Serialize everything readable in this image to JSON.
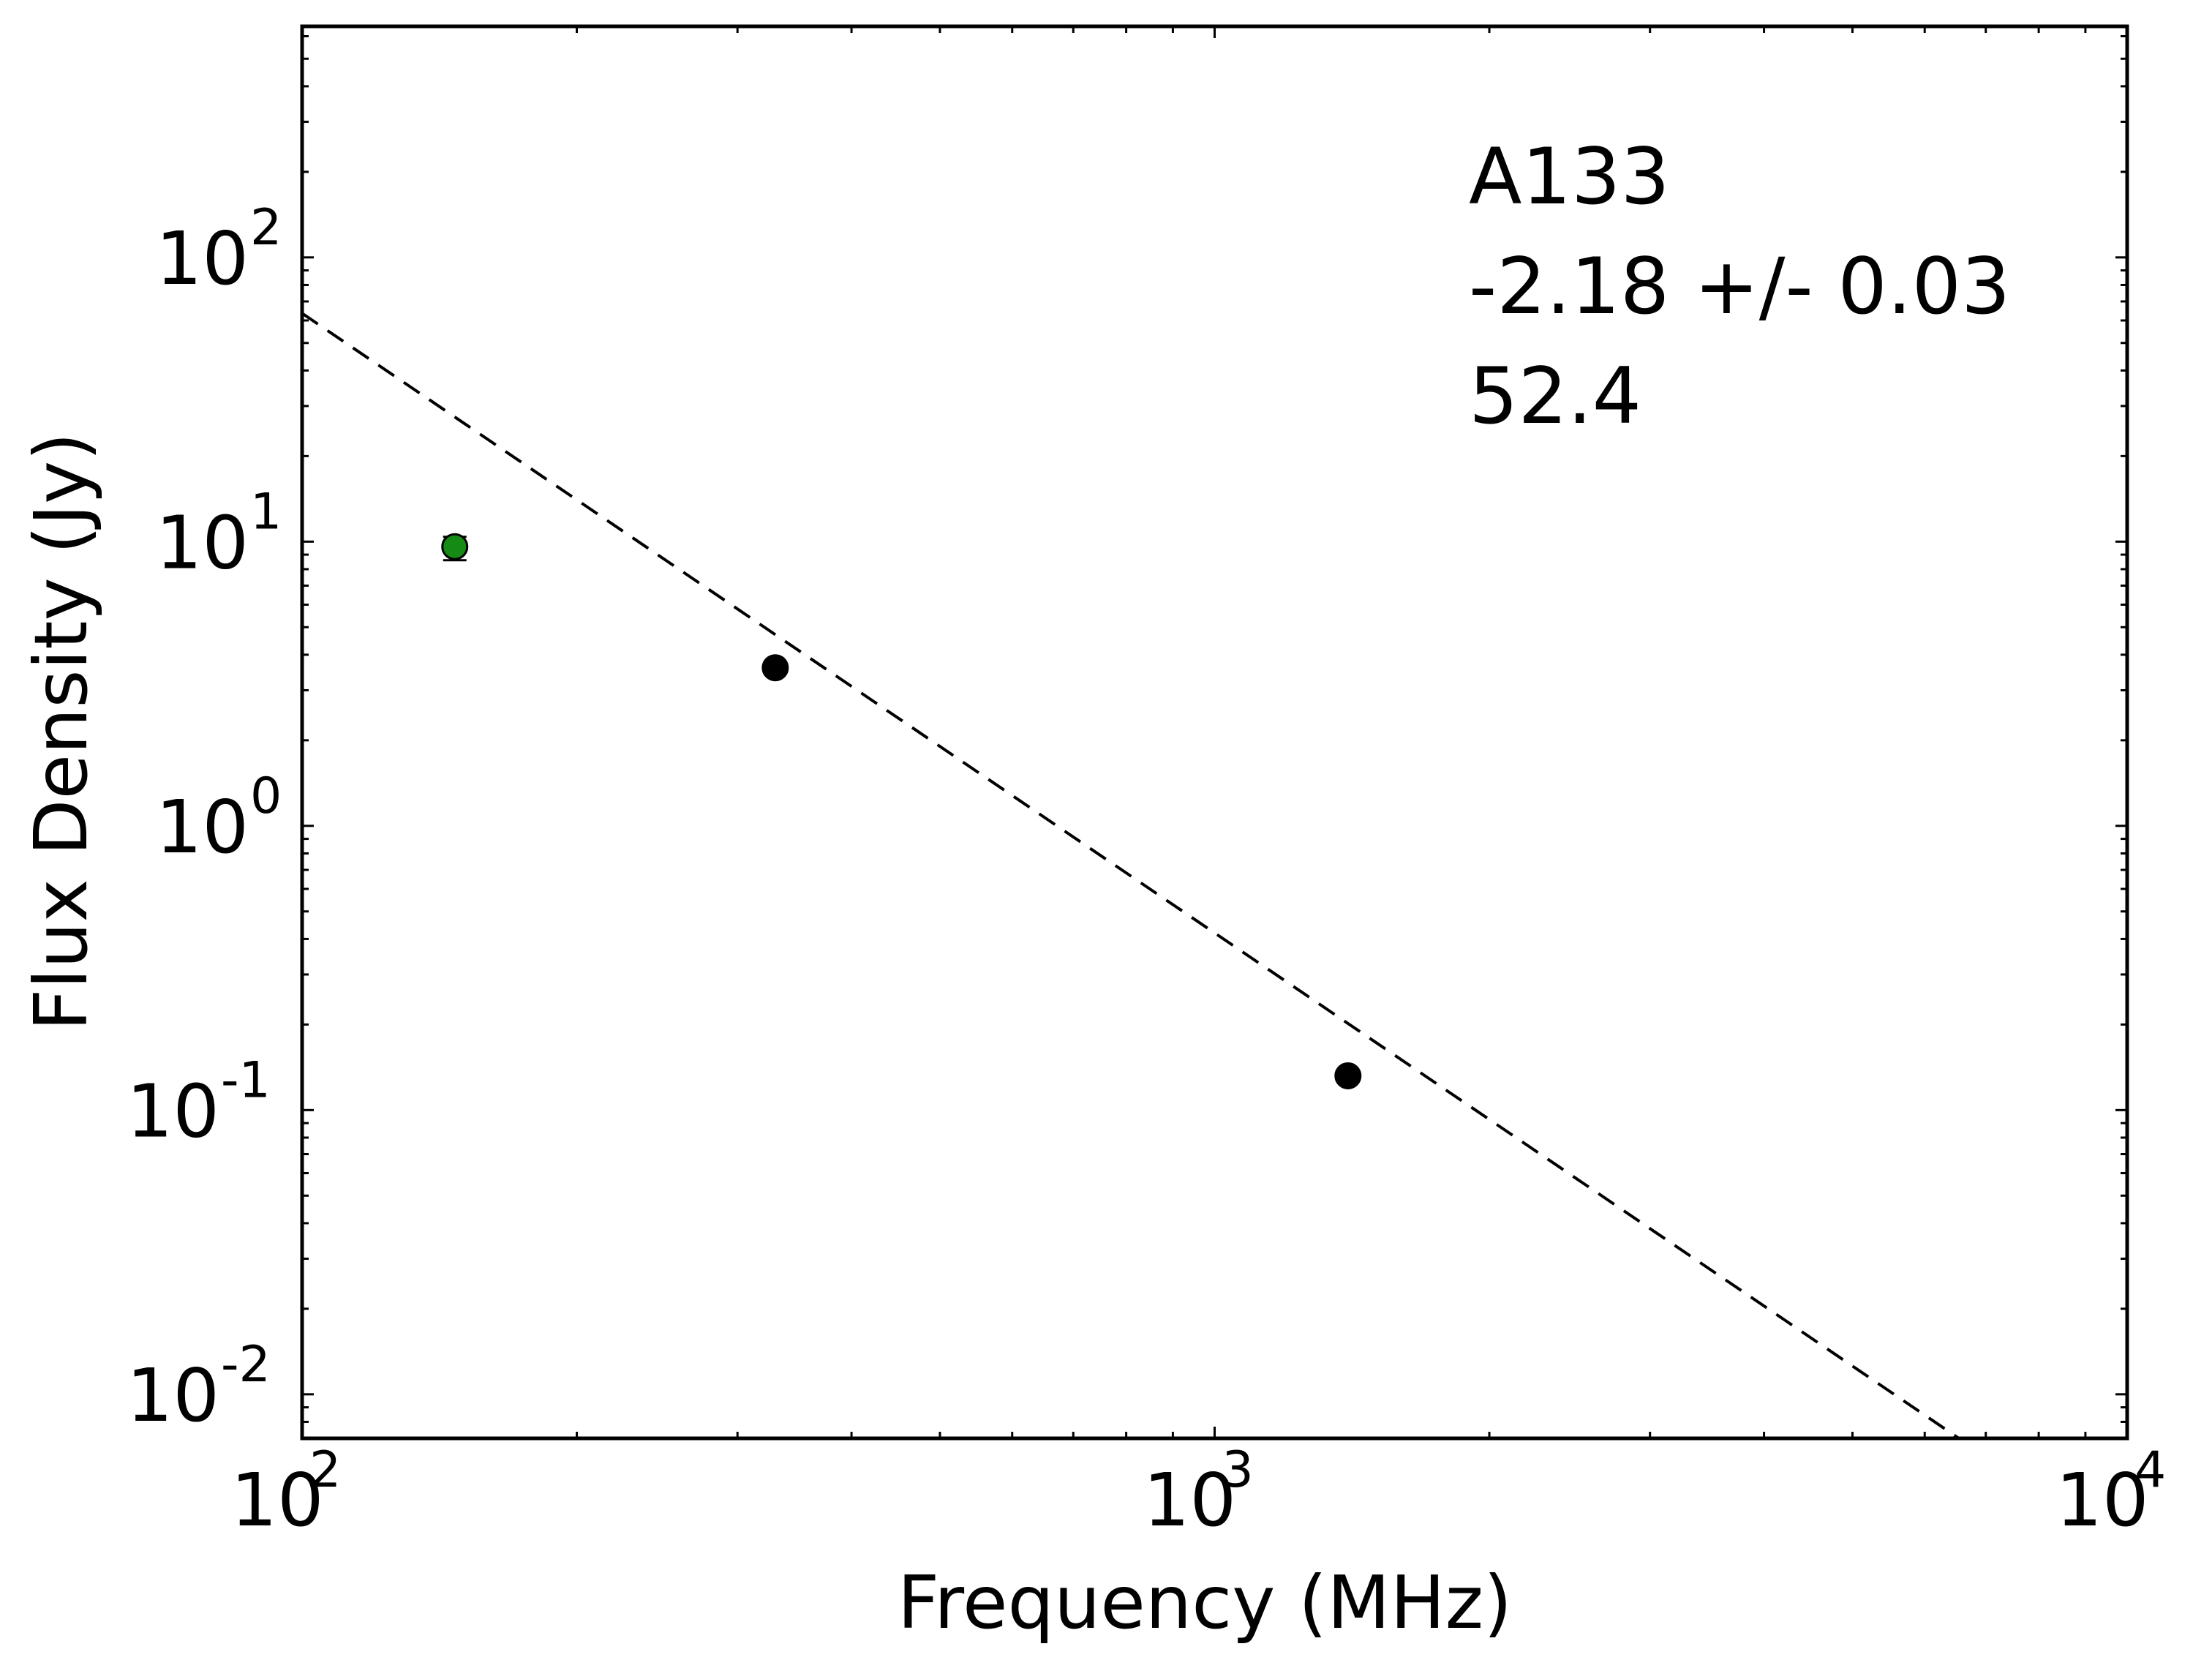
{
  "chart_data": {
    "type": "scatter",
    "title": "",
    "xlabel": "Frequency (MHz)",
    "ylabel": "Flux Density (Jy)",
    "xscale": "log",
    "yscale": "log",
    "xlim": [
      100,
      10000
    ],
    "ylim": [
      0.007,
      650
    ],
    "grid": false,
    "x_ticks": [
      {
        "value": 100,
        "base": "10",
        "exp": "2"
      },
      {
        "value": 1000,
        "base": "10",
        "exp": "3"
      },
      {
        "value": 10000,
        "base": "10",
        "exp": "4"
      }
    ],
    "y_ticks": [
      {
        "value": 0.01,
        "base": "10",
        "exp": "-2"
      },
      {
        "value": 0.1,
        "base": "10",
        "exp": "-1"
      },
      {
        "value": 1,
        "base": "10",
        "exp": "0"
      },
      {
        "value": 10,
        "base": "10",
        "exp": "1"
      },
      {
        "value": 100,
        "base": "10",
        "exp": "2"
      }
    ],
    "annotations": [
      "A133",
      "-2.18 +/- 0.03",
      "52.4"
    ],
    "series": [
      {
        "kind": "points",
        "color": "#158a15",
        "points": [
          {
            "x": 147,
            "y": 9.6,
            "yerr_low": 8.6,
            "yerr_high": 10.4
          }
        ]
      },
      {
        "kind": "points",
        "color": "#000000",
        "points": [
          {
            "x": 330,
            "y": 3.6
          },
          {
            "x": 1400,
            "y": 0.132
          }
        ]
      },
      {
        "kind": "fit",
        "style": "dashed",
        "color": "#000000",
        "amplitude_at_1000": 0.42,
        "slope": -2.18
      }
    ]
  }
}
